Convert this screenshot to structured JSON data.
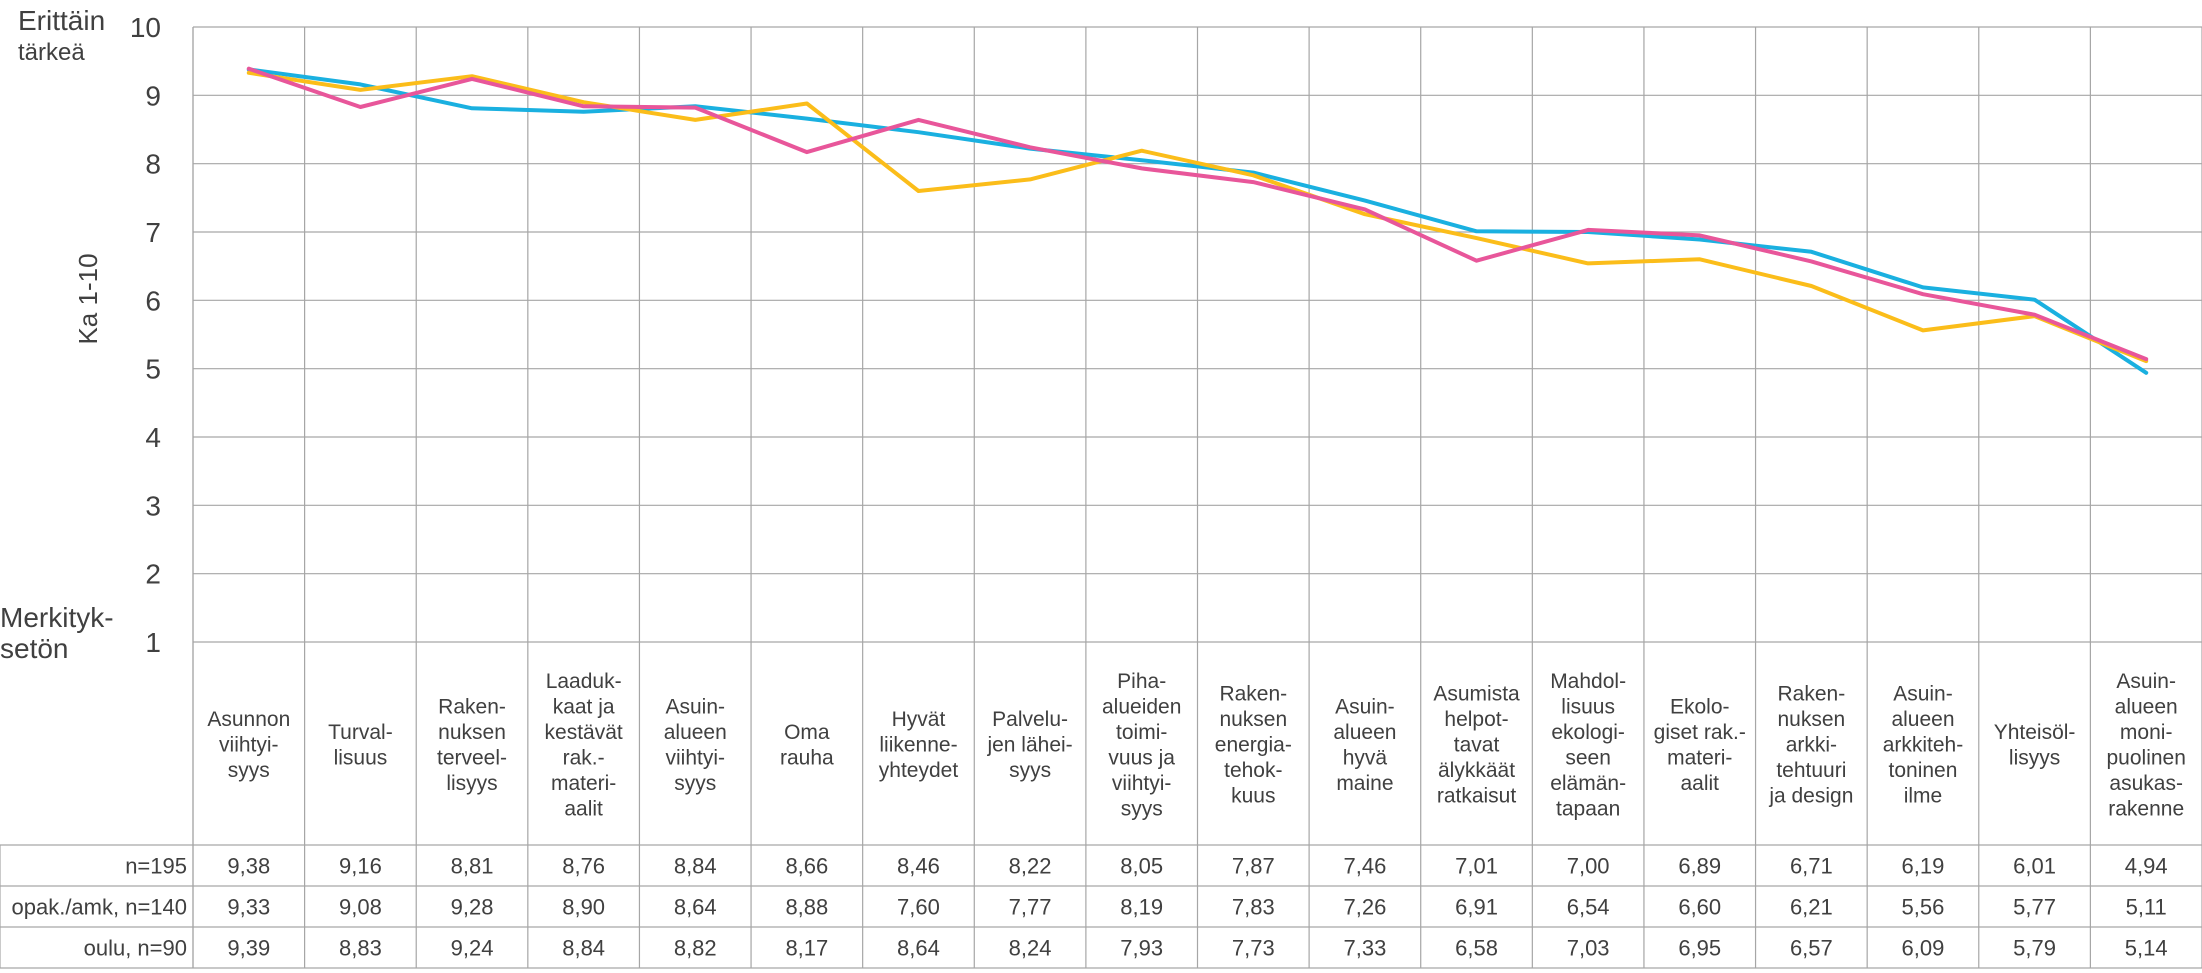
{
  "chart_data": {
    "type": "line",
    "ylabel": "Ka 1-10",
    "ylim": [
      1,
      10
    ],
    "yticks": [
      1,
      2,
      3,
      4,
      5,
      6,
      7,
      8,
      9,
      10
    ],
    "y_top_label": [
      "Erittäin",
      "tärkeä"
    ],
    "y_bottom_label": [
      "Merkityk-",
      "setön"
    ],
    "grid": true,
    "legend": "table rows below chart",
    "categories": [
      [
        "Asunnon",
        "viihtyi-",
        "syys"
      ],
      [
        "Turval-",
        "lisuus"
      ],
      [
        "Raken-",
        "nuksen",
        "terveel-",
        "lisyys"
      ],
      [
        "Laaduk-",
        "kaat ja",
        "kestävät",
        "rak.-",
        "materi-",
        "aalit"
      ],
      [
        "Asuin-",
        "alueen",
        "viihtyi-",
        "syys"
      ],
      [
        "Oma",
        "rauha"
      ],
      [
        "Hyvät",
        "liikenne-",
        "yhteydet"
      ],
      [
        "Palvelu-",
        "jen lähei-",
        "syys"
      ],
      [
        "Piha-",
        "alueiden",
        "toimi-",
        "vuus ja",
        "viihtyi-",
        "syys"
      ],
      [
        "Raken-",
        "nuksen",
        "energia-",
        "tehok-",
        "kuus"
      ],
      [
        "Asuin-",
        "alueen",
        "hyvä",
        "maine"
      ],
      [
        "Asumista",
        "helpot-",
        "tavat",
        "älykkäät",
        "ratkaisut"
      ],
      [
        "Mahdol-",
        "lisuus",
        "ekologi-",
        "seen",
        "elämän-",
        "tapaan"
      ],
      [
        "Ekolo-",
        "giset rak.-",
        "materi-",
        "aalit"
      ],
      [
        "Raken-",
        "nuksen",
        "arkki-",
        "tehtuuri",
        "ja design"
      ],
      [
        "Asuin-",
        "alueen",
        "arkkiteh-",
        "toninen",
        "ilme"
      ],
      [
        "Yhteisöl-",
        "lisyys"
      ],
      [
        "Asuin-",
        "alueen",
        "moni-",
        "puolinen",
        "asukas-",
        "rakenne"
      ]
    ],
    "series": [
      {
        "name": "n=195",
        "color": "#1ab0e0",
        "values": [
          9.38,
          9.16,
          8.81,
          8.76,
          8.84,
          8.66,
          8.46,
          8.22,
          8.05,
          7.87,
          7.46,
          7.01,
          7.0,
          6.89,
          6.71,
          6.19,
          6.01,
          4.94
        ],
        "labels": [
          "9,38",
          "9,16",
          "8,81",
          "8,76",
          "8,84",
          "8,66",
          "8,46",
          "8,22",
          "8,05",
          "7,87",
          "7,46",
          "7,01",
          "7,00",
          "6,89",
          "6,71",
          "6,19",
          "6,01",
          "4,94"
        ]
      },
      {
        "name": "opak./amk, n=140",
        "color": "#fbbd1a",
        "values": [
          9.33,
          9.08,
          9.28,
          8.9,
          8.64,
          8.88,
          7.6,
          7.77,
          8.19,
          7.83,
          7.26,
          6.91,
          6.54,
          6.6,
          6.21,
          5.56,
          5.77,
          5.11
        ],
        "labels": [
          "9,33",
          "9,08",
          "9,28",
          "8,90",
          "8,64",
          "8,88",
          "7,60",
          "7,77",
          "8,19",
          "7,83",
          "7,26",
          "6,91",
          "6,54",
          "6,60",
          "6,21",
          "5,56",
          "5,77",
          "5,11"
        ]
      },
      {
        "name": "oulu, n=90",
        "color": "#e8569a",
        "values": [
          9.39,
          8.83,
          9.24,
          8.84,
          8.82,
          8.17,
          8.64,
          8.24,
          7.93,
          7.73,
          7.33,
          6.58,
          7.03,
          6.95,
          6.57,
          6.09,
          5.79,
          5.14
        ],
        "labels": [
          "9,39",
          "8,83",
          "9,24",
          "8,84",
          "8,82",
          "8,17",
          "8,64",
          "8,24",
          "7,93",
          "7,73",
          "7,33",
          "6,58",
          "7,03",
          "6,95",
          "6,57",
          "6,09",
          "5,79",
          "5,14"
        ]
      }
    ]
  }
}
